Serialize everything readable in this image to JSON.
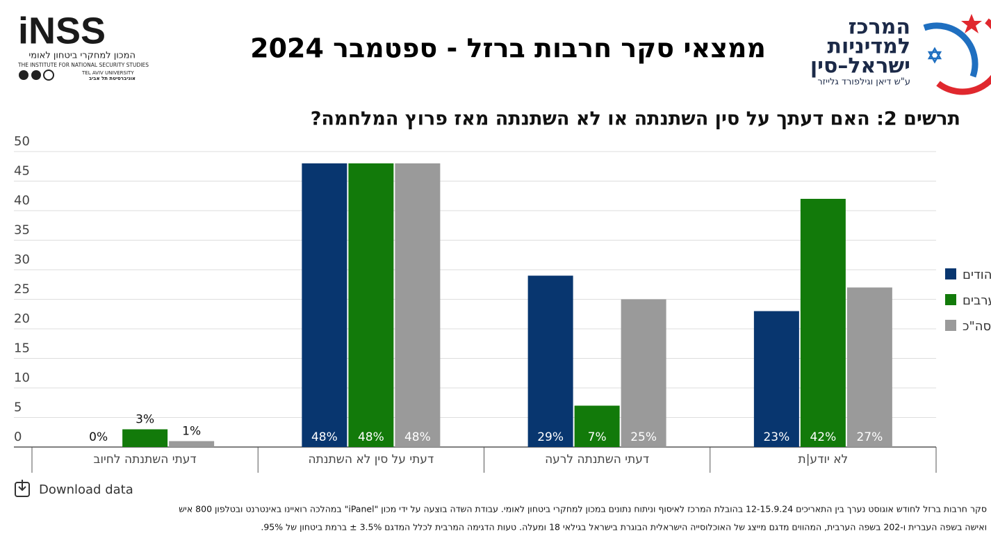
{
  "header": {
    "title": "ממצאי סקר חרבות ברזל - ספטמבר 2024",
    "left_logo": {
      "name": "iNSS",
      "hebrew": "המכון למחקרי ביטחון לאומי",
      "english": "THE INSTITUTE FOR NATIONAL SECURITY STUDIES",
      "university_en": "TEL AVIV UNIVERSITY",
      "university_he": "אוניברסיטת תל אביב"
    },
    "right_logo": {
      "line1": "המרכז",
      "line2": "למדיניות",
      "line3": "ישראל–סין",
      "line4": "ע\"ש דיאן וגילפורד גלייזר"
    }
  },
  "chart_data": {
    "type": "bar",
    "title": "תרשים 2: האם דעתך על סין השתנתה או לא השתנתה מאז פרוץ המלחמה?",
    "categories": [
      "דעתי השתנתה לחיוב",
      "דעתי על סין לא השתנתה",
      "דעתי השתנתה לרעה",
      "לא יודע|ת"
    ],
    "series": [
      {
        "name": "יהודים",
        "color": "#08366f",
        "values": [
          0,
          48,
          29,
          23
        ],
        "value_labels": [
          "0%",
          "48%",
          "29%",
          "23%"
        ]
      },
      {
        "name": "ערבים",
        "color": "#127a0a",
        "values": [
          3,
          48,
          7,
          42
        ],
        "value_labels": [
          "3%",
          "48%",
          "7%",
          "42%"
        ]
      },
      {
        "name": "סה\"כ",
        "color": "#9a9a9a",
        "values": [
          1,
          48,
          25,
          27
        ],
        "value_labels": [
          "1%",
          "48%",
          "25%",
          "27%"
        ]
      }
    ],
    "ylim": [
      0,
      50
    ],
    "yticks": [
      0,
      5,
      10,
      15,
      20,
      25,
      30,
      35,
      40,
      45,
      50
    ],
    "grid": true,
    "legend": "right"
  },
  "footer": {
    "download": "Download data",
    "note": [
      "סקר חרבות ברזל לחודש אוגוסט נערך בין התאריכים 12-15.9.24 בהובלת המרכז לאיסוף וניתוח נתונים במכון למחקרי ביטחון לאומי. עבודת השדה בוצעה על ידי מכון \"iPanel\" במהלכה רואיינו באינטרנט ובטלפון 800 איש",
      "ואישה בשפה העברית ו-202 בשפה הערבית, המהווים מדגם מייצג של האוכלוסייה הישראלית הבוגרת בישראל בגילאי 18 ומעלה. טעות הדגימה המרבית לכלל המדגם 3.5% ± ברמת ביטחון של 95%."
    ]
  }
}
